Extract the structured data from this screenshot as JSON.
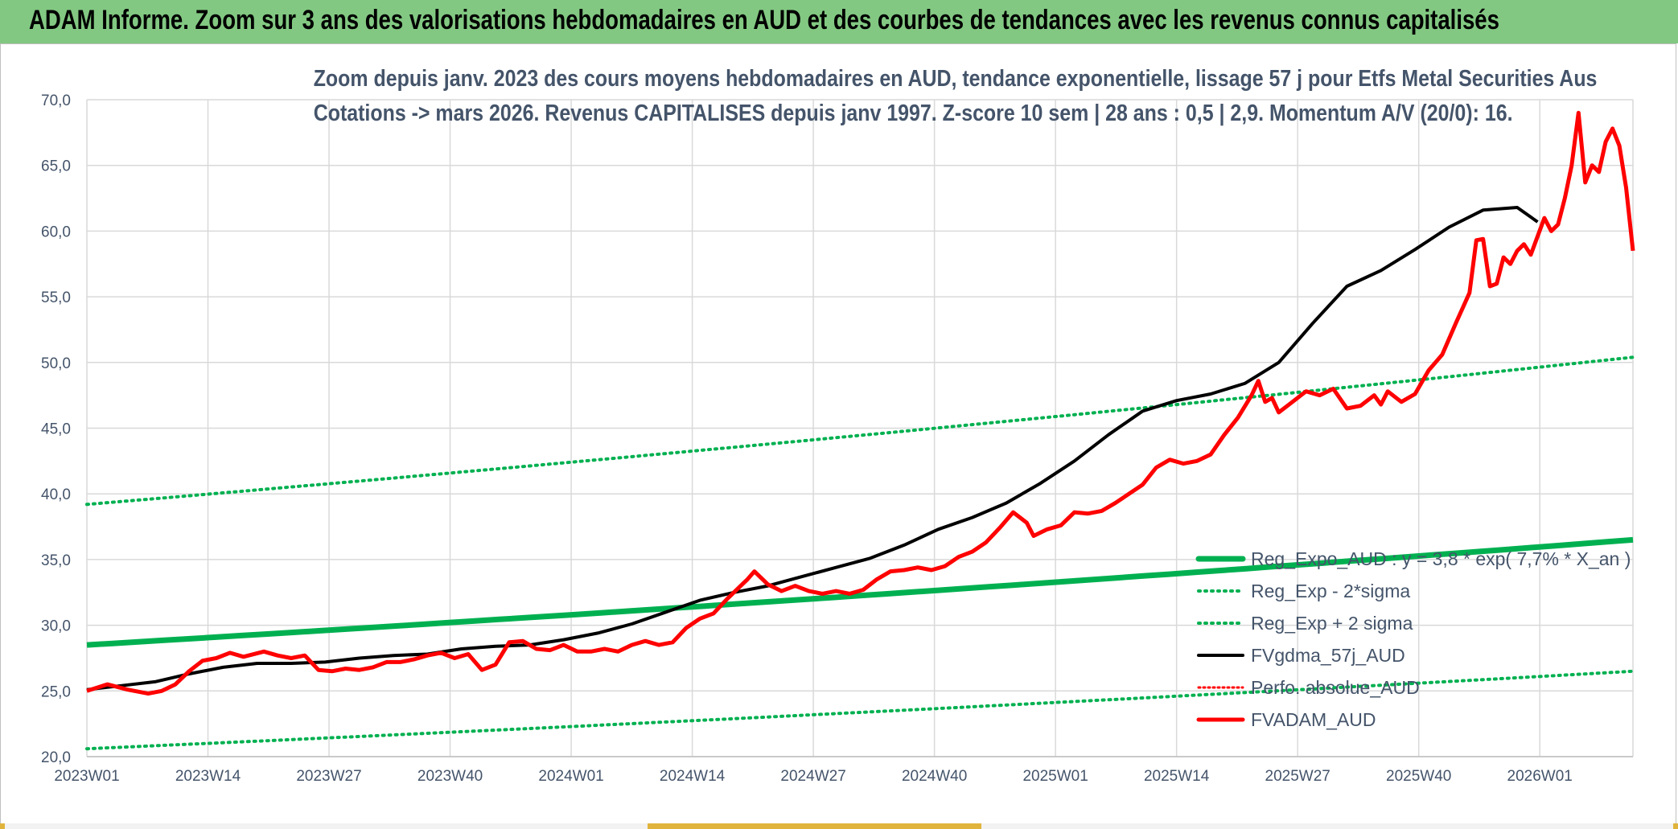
{
  "header": {
    "banner_title": "ADAM Informe. Zoom sur 3 ans des valorisations hebdomadaires en AUD et des courbes de tendances avec les revenus connus capitalisés"
  },
  "colors": {
    "banner": "#82c882",
    "grid": "#d9d9d9",
    "axis_text": "#44546a",
    "trend": "#00b050",
    "price": "#ff0000",
    "ma": "#000000"
  },
  "chart_data": {
    "type": "line",
    "title_line1": "Zoom depuis janv. 2023 des cours moyens hebdomadaires en AUD, tendance exponentielle, lissage 57 j pour Etfs Metal Securities Aus",
    "title_line2": "Cotations -> mars 2026. Revenus CAPITALISES depuis janv 1997. Z-score 10 sem | 28 ans : 0,5 | 2,9. Momentum A/V (20/0): 16.",
    "ylim": [
      20,
      70
    ],
    "y_ticks": [
      "20,0",
      "25,0",
      "30,0",
      "35,0",
      "40,0",
      "45,0",
      "50,0",
      "55,0",
      "60,0",
      "65,0",
      "70,0"
    ],
    "x_tick_labels": [
      "2023W01",
      "2023W14",
      "2023W27",
      "2023W40",
      "2024W01",
      "2024W14",
      "2024W27",
      "2024W40",
      "2025W01",
      "2025W14",
      "2025W27",
      "2025W40",
      "2026W01"
    ],
    "n_weeks": 167,
    "grid": true,
    "legend_position": "bottom-right",
    "legend": [
      "Reg_Expo_AUD : y = 3,8 * exp( 7,7% * X_an )",
      "Reg_Exp - 2*sigma",
      "Reg_Exp + 2 sigma",
      "FVgdma_57j_AUD",
      "Perfo. absolue_AUD",
      "FVADAM_AUD"
    ],
    "trend_regression": {
      "start": 28.5,
      "end": 36.5
    },
    "trend_minus_2sigma": {
      "start": 20.6,
      "end": 26.5
    },
    "trend_plus_2sigma": {
      "start": 39.2,
      "end": 50.4
    },
    "ma_57j_anchors": [
      [
        0,
        25.1
      ],
      [
        5,
        25.4
      ],
      [
        10,
        25.7
      ],
      [
        15,
        26.3
      ],
      [
        20,
        26.8
      ],
      [
        25,
        27.1
      ],
      [
        30,
        27.1
      ],
      [
        35,
        27.2
      ],
      [
        40,
        27.5
      ],
      [
        45,
        27.7
      ],
      [
        50,
        27.8
      ],
      [
        55,
        28.2
      ],
      [
        60,
        28.4
      ],
      [
        65,
        28.5
      ],
      [
        70,
        28.9
      ],
      [
        75,
        29.4
      ],
      [
        80,
        30.1
      ],
      [
        85,
        31.0
      ],
      [
        90,
        31.9
      ],
      [
        95,
        32.5
      ],
      [
        100,
        33.0
      ],
      [
        105,
        33.7
      ],
      [
        110,
        34.4
      ],
      [
        115,
        35.1
      ],
      [
        120,
        36.1
      ],
      [
        125,
        37.3
      ],
      [
        130,
        38.2
      ],
      [
        135,
        39.3
      ],
      [
        140,
        40.8
      ],
      [
        145,
        42.5
      ],
      [
        150,
        44.5
      ],
      [
        155,
        46.3
      ],
      [
        160,
        47.1
      ],
      [
        165,
        47.6
      ],
      [
        170,
        48.4
      ],
      [
        175,
        50.0
      ],
      [
        180,
        53.0
      ],
      [
        185,
        55.8
      ],
      [
        190,
        57.0
      ],
      [
        195,
        58.6
      ],
      [
        200,
        60.3
      ],
      [
        205,
        61.6
      ],
      [
        210,
        61.8
      ],
      [
        213,
        60.7
      ]
    ],
    "price_anchors": [
      [
        0,
        25.0
      ],
      [
        3,
        25.5
      ],
      [
        6,
        25.1
      ],
      [
        9,
        24.8
      ],
      [
        11,
        25.0
      ],
      [
        13,
        25.5
      ],
      [
        15,
        26.5
      ],
      [
        17,
        27.3
      ],
      [
        19,
        27.5
      ],
      [
        21,
        27.9
      ],
      [
        23,
        27.6
      ],
      [
        26,
        28.0
      ],
      [
        28,
        27.7
      ],
      [
        30,
        27.5
      ],
      [
        32,
        27.7
      ],
      [
        34,
        26.6
      ],
      [
        36,
        26.5
      ],
      [
        38,
        26.7
      ],
      [
        40,
        26.6
      ],
      [
        42,
        26.8
      ],
      [
        44,
        27.2
      ],
      [
        46,
        27.2
      ],
      [
        48,
        27.4
      ],
      [
        50,
        27.7
      ],
      [
        52,
        27.9
      ],
      [
        54,
        27.5
      ],
      [
        56,
        27.8
      ],
      [
        58,
        26.6
      ],
      [
        60,
        27.0
      ],
      [
        62,
        28.7
      ],
      [
        64,
        28.8
      ],
      [
        66,
        28.2
      ],
      [
        68,
        28.1
      ],
      [
        70,
        28.5
      ],
      [
        72,
        28.0
      ],
      [
        74,
        28.0
      ],
      [
        76,
        28.2
      ],
      [
        78,
        28.0
      ],
      [
        80,
        28.5
      ],
      [
        82,
        28.8
      ],
      [
        84,
        28.5
      ],
      [
        86,
        28.7
      ],
      [
        88,
        29.8
      ],
      [
        90,
        30.5
      ],
      [
        92,
        30.9
      ],
      [
        94,
        32.0
      ],
      [
        96,
        33.0
      ],
      [
        97,
        33.5
      ],
      [
        98,
        34.1
      ],
      [
        100,
        33.1
      ],
      [
        102,
        32.6
      ],
      [
        104,
        33.0
      ],
      [
        106,
        32.6
      ],
      [
        108,
        32.4
      ],
      [
        110,
        32.6
      ],
      [
        112,
        32.4
      ],
      [
        114,
        32.7
      ],
      [
        116,
        33.5
      ],
      [
        118,
        34.1
      ],
      [
        120,
        34.2
      ],
      [
        122,
        34.4
      ],
      [
        124,
        34.2
      ],
      [
        126,
        34.5
      ],
      [
        128,
        35.2
      ],
      [
        130,
        35.6
      ],
      [
        132,
        36.3
      ],
      [
        134,
        37.4
      ],
      [
        136,
        38.6
      ],
      [
        138,
        37.8
      ],
      [
        139,
        36.8
      ],
      [
        141,
        37.3
      ],
      [
        143,
        37.6
      ],
      [
        145,
        38.6
      ],
      [
        147,
        38.5
      ],
      [
        149,
        38.7
      ],
      [
        151,
        39.3
      ],
      [
        153,
        40.0
      ],
      [
        155,
        40.7
      ],
      [
        157,
        42.0
      ],
      [
        159,
        42.6
      ],
      [
        161,
        42.3
      ],
      [
        163,
        42.5
      ],
      [
        165,
        43.0
      ],
      [
        167,
        44.5
      ],
      [
        169,
        45.8
      ],
      [
        171,
        47.5
      ],
      [
        172,
        48.6
      ],
      [
        173,
        47.0
      ],
      [
        174,
        47.3
      ],
      [
        175,
        46.2
      ],
      [
        177,
        47.0
      ],
      [
        179,
        47.8
      ],
      [
        181,
        47.5
      ],
      [
        183,
        48.0
      ],
      [
        185,
        46.5
      ],
      [
        187,
        46.7
      ],
      [
        189,
        47.5
      ],
      [
        190,
        46.8
      ],
      [
        191,
        47.8
      ],
      [
        193,
        47.0
      ],
      [
        195,
        47.6
      ],
      [
        197,
        49.4
      ],
      [
        199,
        50.6
      ],
      [
        201,
        53.0
      ],
      [
        203,
        55.3
      ],
      [
        204,
        59.3
      ],
      [
        205,
        59.4
      ],
      [
        206,
        55.8
      ],
      [
        207,
        56.0
      ],
      [
        208,
        58.0
      ],
      [
        209,
        57.5
      ],
      [
        210,
        58.5
      ],
      [
        211,
        59.0
      ],
      [
        212,
        58.2
      ],
      [
        214,
        61.0
      ],
      [
        215,
        60.0
      ],
      [
        216,
        60.5
      ],
      [
        217,
        62.5
      ],
      [
        218,
        65.0
      ],
      [
        219,
        69.0
      ],
      [
        220,
        63.7
      ],
      [
        221,
        65.0
      ],
      [
        222,
        64.5
      ],
      [
        223,
        66.8
      ],
      [
        224,
        67.8
      ],
      [
        225,
        66.5
      ],
      [
        226,
        63.3
      ],
      [
        227,
        58.5
      ]
    ]
  }
}
